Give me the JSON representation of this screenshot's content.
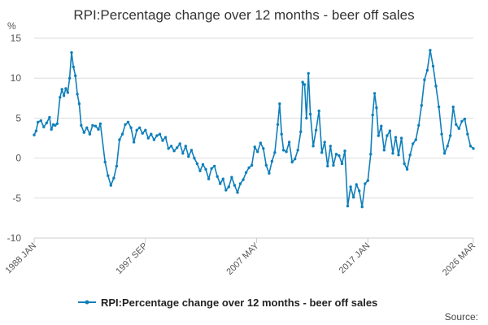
{
  "chart_data": {
    "type": "line",
    "title": "RPI:Percentage change over 12 months - beer off sales",
    "unit_label": "%",
    "source_label": "Source:",
    "ylim": [
      -10,
      15
    ],
    "yticks": [
      15,
      10,
      5,
      0,
      -5,
      -10
    ],
    "xlim": [
      "1988-01",
      "2026-03"
    ],
    "xticks": [
      "1988 JAN",
      "1997 SEP",
      "2007 MAY",
      "2017 JAN",
      "2026 MAR"
    ],
    "grid": "horizontal",
    "legend_position": "bottom",
    "colors": {
      "series": "#0f7fba",
      "grid": "#dddddd",
      "axis": "#cccccc"
    },
    "series": [
      {
        "name": "RPI:Percentage change over 12 months - beer off sales",
        "points": [
          [
            "1988-01",
            2.9
          ],
          [
            "1988-03",
            3.4
          ],
          [
            "1988-05",
            4.5
          ],
          [
            "1988-08",
            4.7
          ],
          [
            "1988-11",
            3.9
          ],
          [
            "1989-02",
            4.4
          ],
          [
            "1989-05",
            5.1
          ],
          [
            "1989-07",
            3.6
          ],
          [
            "1989-09",
            4.2
          ],
          [
            "1989-11",
            4.1
          ],
          [
            "1990-01",
            4.3
          ],
          [
            "1990-04",
            7.6
          ],
          [
            "1990-06",
            8.6
          ],
          [
            "1990-08",
            7.8
          ],
          [
            "1990-10",
            8.7
          ],
          [
            "1990-12",
            8.2
          ],
          [
            "1991-02",
            10.0
          ],
          [
            "1991-04",
            13.2
          ],
          [
            "1991-06",
            11.4
          ],
          [
            "1991-08",
            10.3
          ],
          [
            "1991-10",
            8.0
          ],
          [
            "1991-12",
            6.8
          ],
          [
            "1992-02",
            4.1
          ],
          [
            "1992-05",
            3.2
          ],
          [
            "1992-08",
            3.8
          ],
          [
            "1992-11",
            3.0
          ],
          [
            "1993-02",
            4.1
          ],
          [
            "1993-05",
            4.0
          ],
          [
            "1993-08",
            3.6
          ],
          [
            "1993-10",
            4.3
          ],
          [
            "1994-03",
            -0.5
          ],
          [
            "1994-06",
            -2.2
          ],
          [
            "1994-09",
            -3.4
          ],
          [
            "1994-12",
            -2.5
          ],
          [
            "1995-03",
            -1.0
          ],
          [
            "1995-06",
            2.3
          ],
          [
            "1995-09",
            3.0
          ],
          [
            "1995-12",
            4.2
          ],
          [
            "1996-03",
            4.5
          ],
          [
            "1996-06",
            3.8
          ],
          [
            "1996-09",
            2.0
          ],
          [
            "1996-12",
            3.5
          ],
          [
            "1997-03",
            3.8
          ],
          [
            "1997-06",
            3.1
          ],
          [
            "1997-09",
            3.5
          ],
          [
            "1997-12",
            2.5
          ],
          [
            "1998-03",
            3.0
          ],
          [
            "1998-06",
            2.3
          ],
          [
            "1998-09",
            2.8
          ],
          [
            "1998-12",
            3.0
          ],
          [
            "1999-03",
            2.2
          ],
          [
            "1999-06",
            2.6
          ],
          [
            "1999-09",
            1.2
          ],
          [
            "1999-12",
            1.5
          ],
          [
            "2000-03",
            0.9
          ],
          [
            "2000-06",
            1.3
          ],
          [
            "2000-09",
            1.8
          ],
          [
            "2000-12",
            0.6
          ],
          [
            "2001-03",
            1.5
          ],
          [
            "2001-06",
            0.2
          ],
          [
            "2001-09",
            1.0
          ],
          [
            "2001-12",
            0.0
          ],
          [
            "2002-03",
            -0.7
          ],
          [
            "2002-06",
            -1.6
          ],
          [
            "2002-09",
            -0.8
          ],
          [
            "2002-12",
            -1.4
          ],
          [
            "2003-03",
            -2.6
          ],
          [
            "2003-06",
            -1.3
          ],
          [
            "2003-09",
            -1.0
          ],
          [
            "2003-12",
            -2.3
          ],
          [
            "2004-03",
            -3.2
          ],
          [
            "2004-06",
            -2.6
          ],
          [
            "2004-09",
            -4.0
          ],
          [
            "2004-12",
            -3.6
          ],
          [
            "2005-03",
            -2.4
          ],
          [
            "2005-06",
            -3.4
          ],
          [
            "2005-09",
            -4.3
          ],
          [
            "2005-12",
            -3.2
          ],
          [
            "2006-03",
            -2.7
          ],
          [
            "2006-06",
            -1.8
          ],
          [
            "2006-09",
            -1.2
          ],
          [
            "2006-12",
            -0.9
          ],
          [
            "2007-03",
            1.4
          ],
          [
            "2007-06",
            0.8
          ],
          [
            "2007-09",
            1.9
          ],
          [
            "2007-12",
            1.2
          ],
          [
            "2008-03",
            -0.9
          ],
          [
            "2008-06",
            -1.9
          ],
          [
            "2008-09",
            -0.4
          ],
          [
            "2008-12",
            0.7
          ],
          [
            "2009-03",
            4.2
          ],
          [
            "2009-05",
            6.8
          ],
          [
            "2009-07",
            3.0
          ],
          [
            "2009-09",
            1.0
          ],
          [
            "2009-12",
            0.8
          ],
          [
            "2010-03",
            2.0
          ],
          [
            "2010-06",
            -0.5
          ],
          [
            "2010-09",
            -0.1
          ],
          [
            "2010-12",
            1.0
          ],
          [
            "2011-03",
            3.3
          ],
          [
            "2011-05",
            9.5
          ],
          [
            "2011-07",
            9.2
          ],
          [
            "2011-09",
            5.0
          ],
          [
            "2011-11",
            10.6
          ],
          [
            "2012-01",
            5.5
          ],
          [
            "2012-04",
            1.5
          ],
          [
            "2012-07",
            3.5
          ],
          [
            "2012-10",
            5.9
          ],
          [
            "2013-01",
            0.7
          ],
          [
            "2013-04",
            2.0
          ],
          [
            "2013-07",
            -1.0
          ],
          [
            "2013-10",
            1.5
          ],
          [
            "2014-01",
            -0.9
          ],
          [
            "2014-04",
            0.5
          ],
          [
            "2014-07",
            0.3
          ],
          [
            "2014-10",
            -0.7
          ],
          [
            "2015-01",
            0.9
          ],
          [
            "2015-04",
            -6.0
          ],
          [
            "2015-07",
            -3.6
          ],
          [
            "2015-10",
            -4.9
          ],
          [
            "2016-01",
            -3.3
          ],
          [
            "2016-04",
            -4.1
          ],
          [
            "2016-07",
            -6.1
          ],
          [
            "2016-10",
            -3.2
          ],
          [
            "2017-01",
            -2.8
          ],
          [
            "2017-04",
            0.5
          ],
          [
            "2017-06",
            5.4
          ],
          [
            "2017-08",
            8.1
          ],
          [
            "2017-10",
            6.3
          ],
          [
            "2017-12",
            2.8
          ],
          [
            "2018-03",
            4.0
          ],
          [
            "2018-06",
            1.0
          ],
          [
            "2018-09",
            2.8
          ],
          [
            "2018-12",
            3.4
          ],
          [
            "2019-03",
            0.6
          ],
          [
            "2019-06",
            2.6
          ],
          [
            "2019-09",
            0.4
          ],
          [
            "2019-12",
            2.5
          ],
          [
            "2020-03",
            -0.7
          ],
          [
            "2020-06",
            -1.4
          ],
          [
            "2020-09",
            0.4
          ],
          [
            "2020-12",
            1.8
          ],
          [
            "2021-03",
            2.3
          ],
          [
            "2021-06",
            4.1
          ],
          [
            "2021-09",
            6.6
          ],
          [
            "2021-12",
            9.8
          ],
          [
            "2022-03",
            11.0
          ],
          [
            "2022-06",
            13.5
          ],
          [
            "2022-09",
            11.5
          ],
          [
            "2022-12",
            9.0
          ],
          [
            "2023-03",
            6.4
          ],
          [
            "2023-06",
            3.0
          ],
          [
            "2023-09",
            0.6
          ],
          [
            "2023-12",
            1.5
          ],
          [
            "2024-03",
            2.8
          ],
          [
            "2024-06",
            6.4
          ],
          [
            "2024-09",
            4.2
          ],
          [
            "2024-12",
            3.7
          ],
          [
            "2025-03",
            4.6
          ],
          [
            "2025-06",
            4.9
          ],
          [
            "2025-09",
            3.0
          ],
          [
            "2025-12",
            1.5
          ],
          [
            "2026-03",
            1.2
          ]
        ]
      }
    ]
  }
}
